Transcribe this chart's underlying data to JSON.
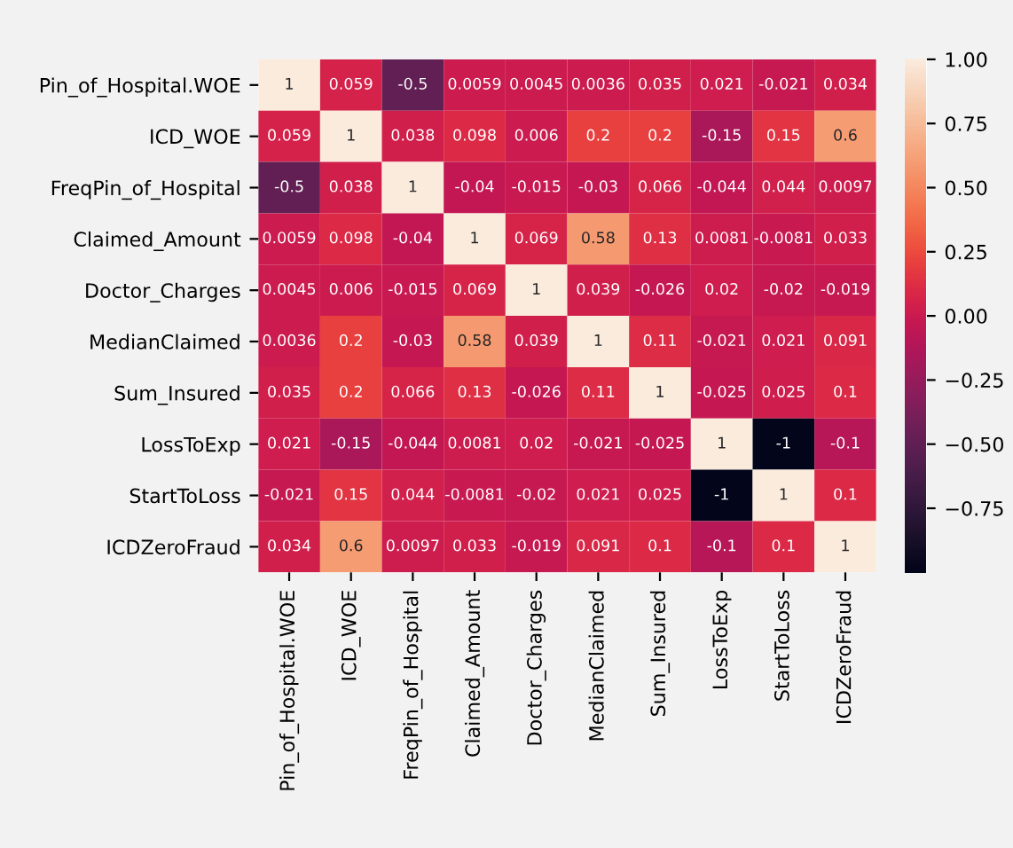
{
  "chart_data": {
    "type": "heatmap",
    "categories": [
      "Pin_of_Hospital.WOE",
      "ICD_WOE",
      "FreqPin_of_Hospital",
      "Claimed_Amount",
      "Doctor_Charges",
      "MedianClaimed",
      "Sum_Insured",
      "LossToExp",
      "StartToLoss",
      "ICDZeroFraud"
    ],
    "y_categories": [
      "Pin_of_Hospital.WOE",
      "ICD_WOE",
      "FreqPin_of_Hospital",
      "Claimed_Amount",
      "Doctor_Charges",
      "MedianClaimed",
      "Sum_Insured",
      "LossToExp",
      "StartToLoss",
      "ICDZeroFraud"
    ],
    "cells": [
      [
        1,
        0.059,
        -0.5,
        0.0059,
        0.0045,
        0.0036,
        0.035,
        0.021,
        -0.021,
        0.034
      ],
      [
        0.059,
        1,
        0.038,
        0.098,
        0.006,
        0.2,
        0.2,
        -0.15,
        0.15,
        0.6
      ],
      [
        -0.5,
        0.038,
        1,
        -0.04,
        -0.015,
        -0.03,
        0.066,
        -0.044,
        0.044,
        0.0097
      ],
      [
        0.0059,
        0.098,
        -0.04,
        1,
        0.069,
        0.58,
        0.13,
        0.0081,
        -0.0081,
        0.033
      ],
      [
        0.0045,
        0.006,
        -0.015,
        0.069,
        1,
        0.039,
        -0.026,
        0.02,
        -0.02,
        -0.019
      ],
      [
        0.0036,
        0.2,
        -0.03,
        0.58,
        0.039,
        1,
        0.11,
        -0.021,
        0.021,
        0.091
      ],
      [
        0.035,
        0.2,
        0.066,
        0.13,
        -0.026,
        0.11,
        1,
        -0.025,
        0.025,
        0.1
      ],
      [
        0.021,
        -0.15,
        -0.044,
        0.0081,
        0.02,
        -0.021,
        -0.025,
        1,
        -1,
        -0.1
      ],
      [
        -0.021,
        0.15,
        0.044,
        -0.0081,
        -0.02,
        0.021,
        0.025,
        -1,
        1,
        0.1
      ],
      [
        0.034,
        0.6,
        0.0097,
        0.033,
        -0.019,
        0.091,
        0.1,
        -0.1,
        0.1,
        1
      ]
    ],
    "data_labels": true,
    "clim": [
      -1,
      1
    ],
    "cticks": [
      {
        "value": -0.75,
        "label": "−0.75"
      },
      {
        "value": -0.5,
        "label": "−0.50"
      },
      {
        "value": -0.25,
        "label": "−0.25"
      },
      {
        "value": 0,
        "label": "0.00"
      },
      {
        "value": 0.25,
        "label": "0.25"
      },
      {
        "value": 0.5,
        "label": "0.50"
      },
      {
        "value": 0.75,
        "label": "0.75"
      },
      {
        "value": 1,
        "label": "1.00"
      }
    ]
  }
}
